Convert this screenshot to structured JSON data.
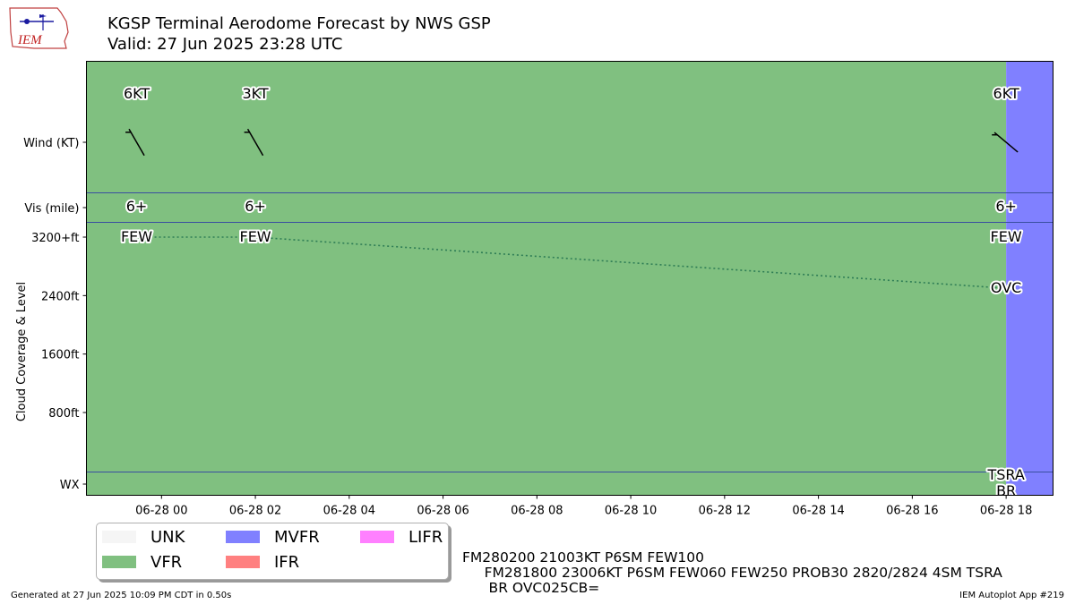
{
  "logo": {
    "text": "IEM"
  },
  "header": {
    "title": "KGSP Terminal Aerodome Forecast by NWS GSP",
    "subtitle": "Valid: 27 Jun 2025 23:28 UTC"
  },
  "colors": {
    "UNK": "#f5f5f5",
    "VFR": "#80c080",
    "MVFR": "#8080ff",
    "IFR": "#ff8080",
    "LIFR": "#ff80ff",
    "separator": "#3a4fa0",
    "cloud_line": "#2e7d55"
  },
  "chart_data": {
    "type": "timeline",
    "y_rows": [
      "Wind (KT)",
      "Vis (mile)",
      "WX"
    ],
    "ylabel": "Cloud Coverage & Level",
    "cloud_ticks": [
      "3200+ft",
      "2400ft",
      "1600ft",
      "800ft"
    ],
    "cloud_tick_values": [
      3200,
      2400,
      1600,
      800
    ],
    "cloud_ylim": [
      0,
      3200
    ],
    "x_tick_labels": [
      "06-28 00",
      "06-28 02",
      "06-28 04",
      "06-28 06",
      "06-28 08",
      "06-28 10",
      "06-28 12",
      "06-28 14",
      "06-28 16",
      "06-28 18"
    ],
    "x_tick_hours": [
      0,
      2,
      4,
      6,
      8,
      10,
      12,
      14,
      16,
      18
    ],
    "xlim_hours": [
      -1.6,
      19.0
    ],
    "flight_category_periods": [
      {
        "start": -1.6,
        "end": 18.0,
        "category": "VFR"
      },
      {
        "start": 18.0,
        "end": 19.0,
        "category": "MVFR"
      }
    ],
    "forecasts": [
      {
        "hour": -0.53,
        "wind": "6KT",
        "wind_dir": 210,
        "wind_speed": 6,
        "vis": "6+",
        "clouds": [
          {
            "cover": "FEW",
            "level": 10000
          }
        ],
        "wx": ""
      },
      {
        "hour": 2.0,
        "wind": "3KT",
        "wind_dir": 210,
        "wind_speed": 3,
        "vis": "6+",
        "clouds": [
          {
            "cover": "FEW",
            "level": 10000
          }
        ],
        "wx": ""
      },
      {
        "hour": 18.0,
        "wind": "6KT",
        "wind_dir": 230,
        "wind_speed": 6,
        "vis": "6+",
        "clouds": [
          {
            "cover": "FEW",
            "level": 6000
          },
          {
            "cover": "OVC",
            "level": 2500
          }
        ],
        "wx": "TSRA\nBR"
      }
    ],
    "cloud_trace": [
      [
        -0.53,
        3200
      ],
      [
        2.0,
        3200
      ],
      [
        18.0,
        2500
      ]
    ]
  },
  "legend": {
    "items": [
      {
        "label": "UNK",
        "key": "UNK"
      },
      {
        "label": "VFR",
        "key": "VFR"
      },
      {
        "label": "MVFR",
        "key": "MVFR"
      },
      {
        "label": "IFR",
        "key": "IFR"
      },
      {
        "label": "LIFR",
        "key": "LIFR"
      }
    ]
  },
  "taf_text": {
    "line1": "FM280200 21003KT P6SM FEW100",
    "line2": "     FM281800 23006KT P6SM FEW060 FEW250 PROB30 2820/2824 4SM TSRA",
    "line3": "      BR OVC025CB="
  },
  "footer": {
    "generated": "Generated at 27 Jun 2025 10:09 PM CDT in 0.50s",
    "app": "IEM Autoplot App #219"
  }
}
